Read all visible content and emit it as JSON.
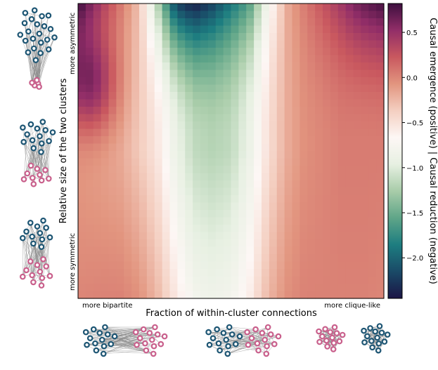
{
  "chart_data": {
    "type": "heatmap",
    "x_label": "Fraction of within-cluster connections",
    "y_label": "Relative size of the two clusters",
    "x_annotations": {
      "left": "more bipartite",
      "right": "more clique-like"
    },
    "y_annotations": {
      "top": "more asymmetric",
      "bottom": "more symmetric"
    },
    "colorbar": {
      "label": "Causal emergence (positive) | Causal reduction (negative)",
      "ticks": [
        0.5,
        0.0,
        -0.5,
        -1.0,
        -1.5,
        -2.0
      ],
      "tick_labels": [
        "0.5",
        "0.0",
        "−0.5",
        "−1.0",
        "−1.5",
        "−2.0"
      ],
      "range": [
        -2.45,
        0.82
      ],
      "colormap": "curl",
      "color_stops": [
        "#1b1545",
        "#1a4a67",
        "#1d7d80",
        "#5fa588",
        "#a8cca9",
        "#e7f0e2",
        "#fdf7f5",
        "#f4cfc1",
        "#e2957f",
        "#c9585f",
        "#922e68",
        "#3e0f3f"
      ]
    },
    "grid": {
      "rows": 40,
      "cols": 40
    },
    "value_profile": {
      "x_fraction": [
        0.0,
        0.08,
        0.14,
        0.2,
        0.26,
        0.32,
        0.38,
        0.44,
        0.5,
        0.56,
        0.62,
        0.68,
        0.74,
        0.8,
        0.86,
        0.9,
        0.94,
        1.0
      ],
      "top_row": [
        0.8,
        0.35,
        0.05,
        -0.3,
        -1.2,
        -2.2,
        -2.4,
        -2.2,
        -1.9,
        -1.6,
        -0.8,
        -0.2,
        0.05,
        0.25,
        0.45,
        0.6,
        0.7,
        0.8
      ],
      "middle_row": [
        -0.1,
        -0.15,
        -0.2,
        -0.35,
        -0.55,
        -0.9,
        -1.15,
        -1.2,
        -1.15,
        -0.9,
        -0.5,
        -0.2,
        -0.05,
        0.0,
        0.05,
        0.05,
        0.05,
        0.05
      ],
      "bottom_row": [
        0.0,
        0.02,
        0.02,
        -0.05,
        -0.25,
        -0.55,
        -0.8,
        -0.85,
        -0.8,
        -0.6,
        -0.25,
        -0.05,
        0.02,
        0.02,
        0.02,
        0.02,
        0.02,
        0.0
      ]
    },
    "left_lobe": {
      "peak": 0.6,
      "x_center": 0.04,
      "y_center": 0.28
    }
  },
  "network_icons": {
    "cluster_a_color": "#1e5674",
    "cluster_b_color": "#c9608c",
    "edge_color": "#8a8a8a",
    "left_column": [
      "asymmetric-clusters",
      "moderately-asymmetric-clusters",
      "symmetric-clusters"
    ],
    "bottom_row": [
      "bipartite-network",
      "mixed-network",
      "clique-network"
    ]
  }
}
